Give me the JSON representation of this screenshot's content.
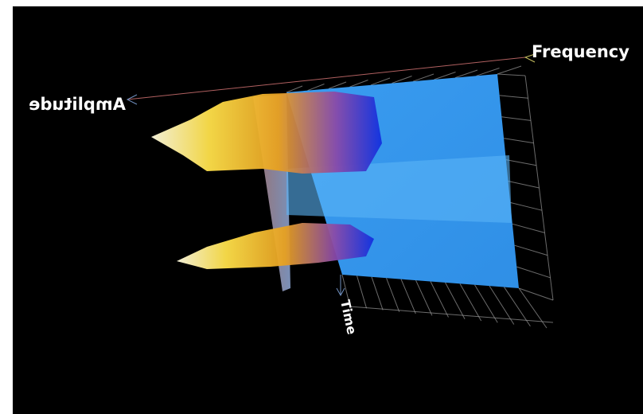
{
  "axis_labels": {
    "frequency": "Frequency",
    "amplitude": "Amplitude",
    "time": "Time"
  }
}
